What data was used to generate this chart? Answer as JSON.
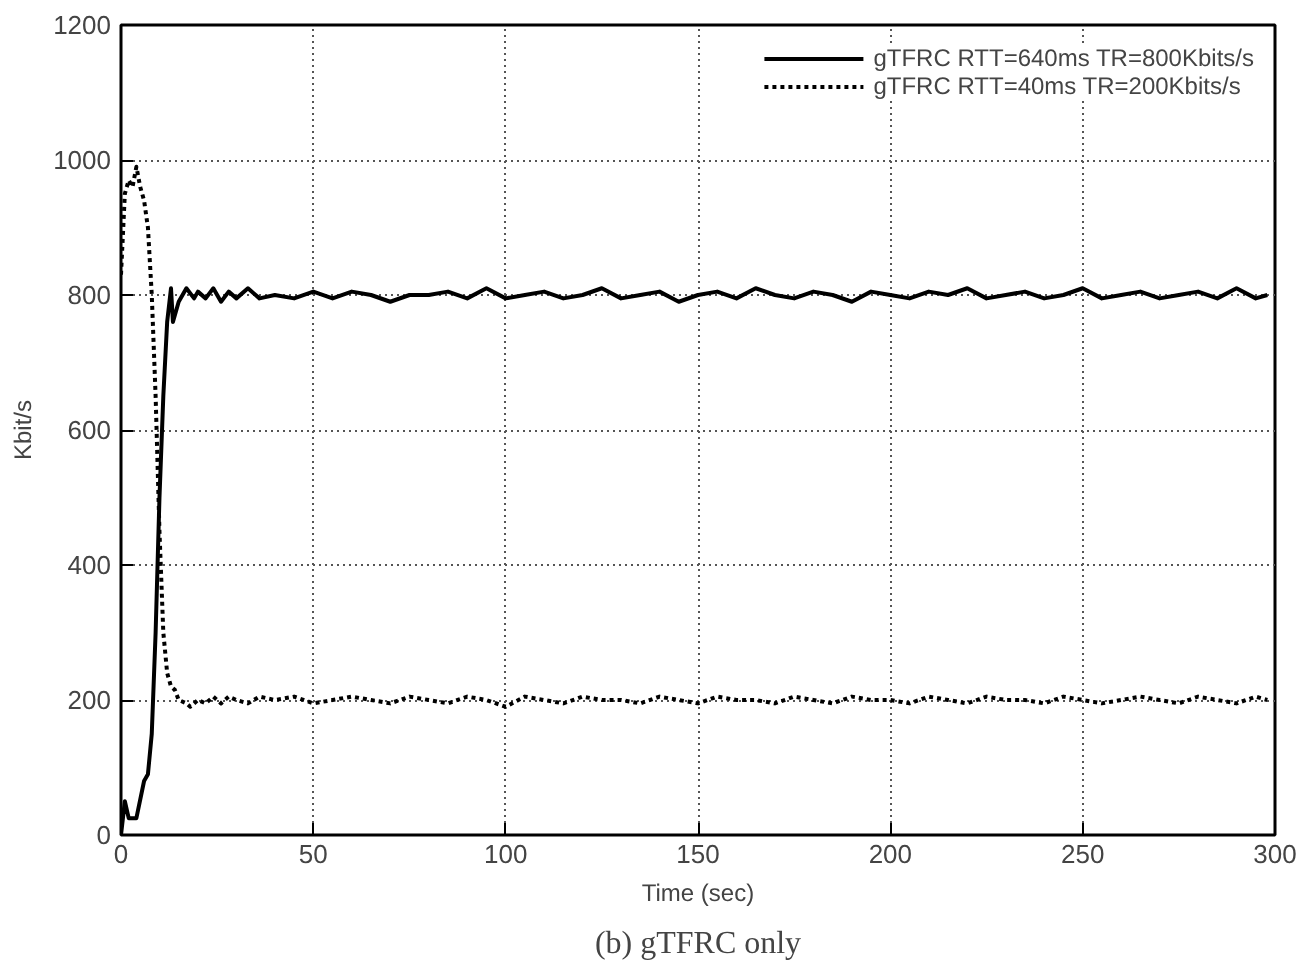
{
  "chart_data": {
    "type": "line",
    "title": "(b) gTFRC only",
    "xlabel": "Time (sec)",
    "ylabel": "Kbit/s",
    "xlim": [
      0,
      300
    ],
    "ylim": [
      0,
      1200
    ],
    "xticks": [
      0,
      50,
      100,
      150,
      200,
      250,
      300
    ],
    "yticks": [
      0,
      200,
      400,
      600,
      800,
      1000,
      1200
    ],
    "grid": true,
    "legend": "top right",
    "series": [
      {
        "name": "gTFRC RTT=640ms TR=800Kbits/s",
        "color": "#000000",
        "line_style": "solid",
        "x": [
          0,
          1,
          2,
          4,
          6,
          7,
          8,
          9,
          10,
          11,
          12,
          13,
          13.5,
          15,
          17,
          19,
          20,
          22,
          24,
          26,
          28,
          30,
          33,
          36,
          40,
          45,
          50,
          55,
          60,
          65,
          70,
          75,
          80,
          85,
          90,
          95,
          100,
          105,
          110,
          115,
          120,
          125,
          130,
          135,
          140,
          145,
          150,
          155,
          160,
          165,
          170,
          175,
          180,
          185,
          190,
          195,
          200,
          205,
          210,
          215,
          220,
          225,
          230,
          235,
          240,
          245,
          250,
          255,
          260,
          265,
          270,
          275,
          280,
          285,
          290,
          295,
          298
        ],
        "values": [
          0,
          50,
          25,
          25,
          80,
          90,
          150,
          300,
          500,
          650,
          760,
          810,
          760,
          790,
          810,
          795,
          805,
          795,
          810,
          790,
          805,
          795,
          810,
          795,
          800,
          795,
          805,
          795,
          805,
          800,
          790,
          800,
          800,
          805,
          795,
          810,
          795,
          800,
          805,
          795,
          800,
          810,
          795,
          800,
          805,
          790,
          800,
          805,
          795,
          810,
          800,
          795,
          805,
          800,
          790,
          805,
          800,
          795,
          805,
          800,
          810,
          795,
          800,
          805,
          795,
          800,
          810,
          795,
          800,
          805,
          795,
          800,
          805,
          795,
          810,
          795,
          800
        ]
      },
      {
        "name": "gTFRC RTT=40ms TR=200Kbits/s",
        "color": "#000000",
        "line_style": "dotted",
        "x": [
          0,
          1,
          2,
          3,
          4,
          5,
          6,
          7,
          8,
          9,
          10,
          11,
          12,
          13,
          14,
          15,
          17,
          18,
          20,
          22,
          24,
          26,
          28,
          30,
          33,
          36,
          40,
          45,
          50,
          55,
          60,
          65,
          70,
          75,
          80,
          85,
          90,
          95,
          100,
          105,
          110,
          115,
          120,
          125,
          130,
          135,
          140,
          145,
          150,
          155,
          160,
          165,
          170,
          175,
          180,
          185,
          190,
          195,
          200,
          205,
          210,
          215,
          220,
          225,
          230,
          235,
          240,
          245,
          250,
          255,
          260,
          265,
          270,
          275,
          280,
          285,
          290,
          295,
          298
        ],
        "values": [
          830,
          950,
          970,
          960,
          990,
          960,
          940,
          900,
          800,
          650,
          450,
          300,
          240,
          220,
          215,
          200,
          195,
          190,
          200,
          195,
          205,
          195,
          205,
          200,
          195,
          205,
          200,
          205,
          195,
          200,
          205,
          200,
          195,
          205,
          200,
          195,
          205,
          200,
          190,
          205,
          200,
          195,
          205,
          200,
          200,
          195,
          205,
          200,
          195,
          205,
          200,
          200,
          195,
          205,
          200,
          195,
          205,
          200,
          200,
          195,
          205,
          200,
          195,
          205,
          200,
          200,
          195,
          205,
          200,
          195,
          200,
          205,
          200,
          195,
          205,
          200,
          195,
          205,
          200
        ]
      }
    ]
  }
}
